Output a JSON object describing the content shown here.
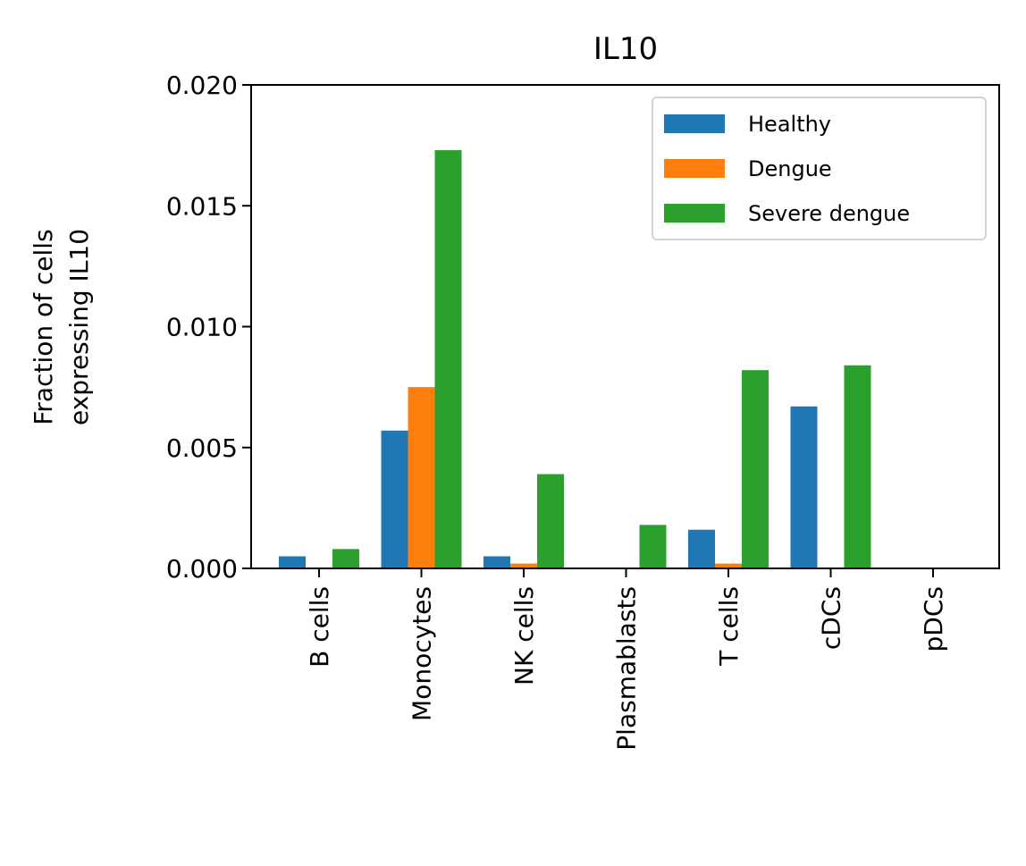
{
  "chart_data": {
    "type": "bar",
    "title": "IL10",
    "ylabel_lines": [
      "Fraction of cells",
      "expressing IL10"
    ],
    "xlabel": "",
    "categories": [
      "B cells",
      "Monocytes",
      "NK cells",
      "Plasmablasts",
      "T cells",
      "cDCs",
      "pDCs"
    ],
    "series": [
      {
        "name": "Healthy",
        "color": "#1f77b4",
        "values": [
          0.0005,
          0.0057,
          0.0005,
          0.0,
          0.0016,
          0.0067,
          0.0
        ]
      },
      {
        "name": "Dengue",
        "color": "#ff7f0e",
        "values": [
          0.0,
          0.0075,
          0.0002,
          0.0,
          0.0002,
          0.0,
          0.0
        ]
      },
      {
        "name": "Severe dengue",
        "color": "#2ca02c",
        "values": [
          0.0008,
          0.0173,
          0.0039,
          0.0018,
          0.0082,
          0.0084,
          0.0
        ]
      }
    ],
    "ylim": [
      0,
      0.02
    ],
    "yticks": [
      "0.000",
      "0.005",
      "0.010",
      "0.015",
      "0.020"
    ],
    "grid": false,
    "legend_position": "top-right"
  }
}
